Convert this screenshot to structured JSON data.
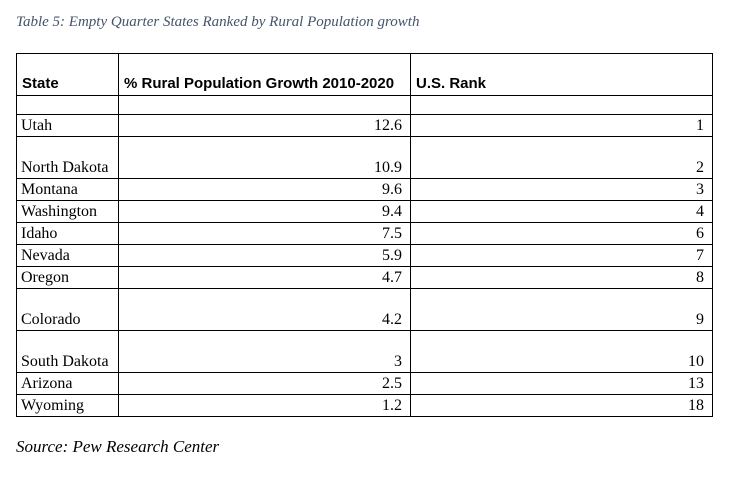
{
  "caption": "Table 5: Empty Quarter States Ranked by Rural Population growth",
  "table": {
    "headers": {
      "state": "State",
      "growth": "% Rural Population Growth 2010-2020",
      "rank": "U.S. Rank"
    },
    "rows": [
      {
        "state": "Utah",
        "growth": "12.6",
        "rank": "1"
      },
      {
        "state": "North Dakota",
        "growth": "10.9",
        "rank": "2"
      },
      {
        "state": "Montana",
        "growth": "9.6",
        "rank": "3"
      },
      {
        "state": "Washington",
        "growth": "9.4",
        "rank": "4"
      },
      {
        "state": "Idaho",
        "growth": "7.5",
        "rank": "6"
      },
      {
        "state": "Nevada",
        "growth": "5.9",
        "rank": "7"
      },
      {
        "state": "Oregon",
        "growth": "4.7",
        "rank": "8"
      },
      {
        "state": "Colorado",
        "growth": "4.2",
        "rank": "9"
      },
      {
        "state": "South Dakota",
        "growth": "3",
        "rank": "10"
      },
      {
        "state": "Arizona",
        "growth": "2.5",
        "rank": "13"
      },
      {
        "state": "Wyoming",
        "growth": "1.2",
        "rank": "18"
      }
    ]
  },
  "source": "Source: Pew Research Center"
}
